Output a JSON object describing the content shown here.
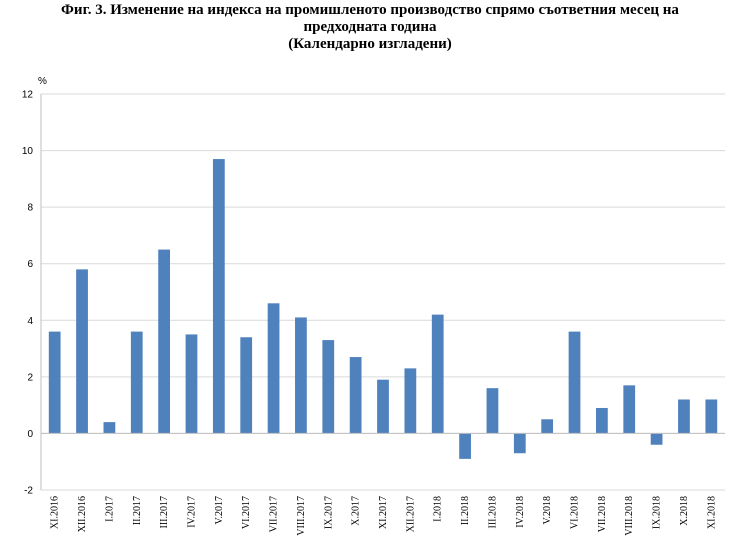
{
  "title_lines": [
    "Фиг. 3. Изменение на индекса на промишленото производство спрямо съответния месец на",
    "предходната година",
    "(Календарно изгладени)"
  ],
  "chart_data": {
    "type": "bar",
    "title": "Фиг. 3. Изменение на индекса на промишленото производство спрямо съответния месец на предходната година (Календарно изгладени)",
    "ylabel": "%",
    "xlabel": "",
    "ylim": [
      -2,
      12
    ],
    "yticks": [
      -2,
      0,
      2,
      4,
      6,
      8,
      10,
      12
    ],
    "grid": true,
    "legend": "none",
    "bar_color": "#4f81bd",
    "categories": [
      "XI.2016",
      "XII.2016",
      "I.2017",
      "II.2017",
      "III.2017",
      "IV.2017",
      "V.2017",
      "VI.2017",
      "VII.2017",
      "VIII.2017",
      "IX.2017",
      "X.2017",
      "XI.2017",
      "XII.2017",
      "I.2018",
      "II.2018",
      "III.2018",
      "IV.2018",
      "V.2018",
      "VI.2018",
      "VII.2018",
      "VIII.2018",
      "IX.2018",
      "X.2018",
      "XI.2018"
    ],
    "values": [
      3.6,
      5.8,
      0.4,
      3.6,
      6.5,
      3.5,
      9.7,
      3.4,
      4.6,
      4.1,
      3.3,
      2.7,
      1.9,
      2.3,
      4.2,
      -0.9,
      1.6,
      -0.7,
      0.5,
      3.6,
      0.9,
      1.7,
      -0.4,
      1.2,
      1.2
    ]
  }
}
